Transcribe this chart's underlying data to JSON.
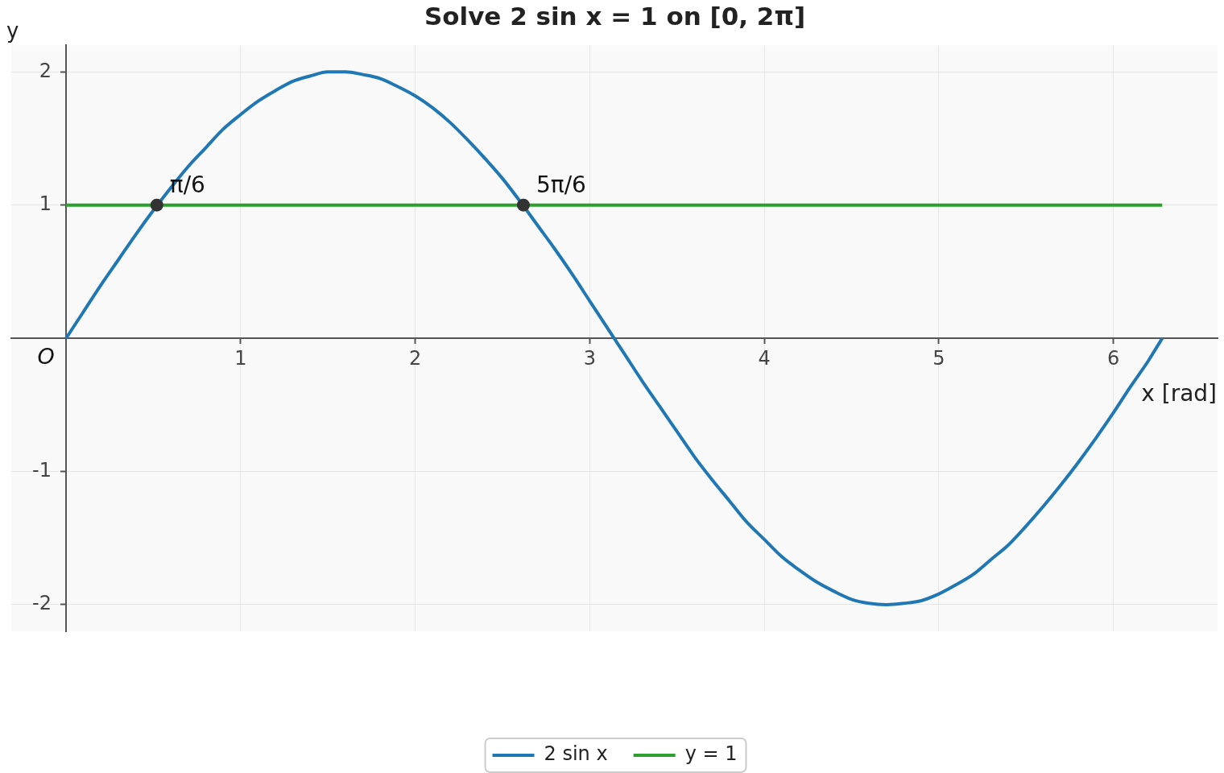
{
  "chart_data": {
    "type": "line",
    "title": "Solve 2 sin x = 1 on [0, 2π]",
    "xlabel": "x [rad]",
    "ylabel": "y",
    "xlim": [
      -0.314,
      6.597
    ],
    "ylim": [
      -2.2,
      2.2
    ],
    "xticks": [
      1,
      2,
      3,
      4,
      5,
      6
    ],
    "yticks": [
      -2,
      -1,
      1,
      2
    ],
    "grid": true,
    "legend": "bottom",
    "annotations": [
      {
        "text": "π/6",
        "x": 0.52,
        "y": 1
      },
      {
        "text": "5π/6",
        "x": 2.62,
        "y": 1
      },
      {
        "text": "O",
        "x": 0,
        "y": 0
      }
    ],
    "series": [
      {
        "name": "2 sin x",
        "color": "#1f77b4",
        "x": [
          0,
          0.1,
          0.2,
          0.3,
          0.4,
          0.5,
          0.6,
          0.7,
          0.8,
          0.9,
          1.0,
          1.1,
          1.2,
          1.3,
          1.4,
          1.5,
          1.6,
          1.7,
          1.8,
          1.9,
          2.0,
          2.1,
          2.2,
          2.3,
          2.4,
          2.5,
          2.6,
          2.7,
          2.8,
          2.9,
          3.0,
          3.1,
          3.2,
          3.3,
          3.4,
          3.5,
          3.6,
          3.7,
          3.8,
          3.9,
          4.0,
          4.1,
          4.2,
          4.3,
          4.4,
          4.5,
          4.6,
          4.7,
          4.8,
          4.9,
          5.0,
          5.1,
          5.2,
          5.3,
          5.4,
          5.5,
          5.6,
          5.7,
          5.8,
          5.9,
          6.0,
          6.1,
          6.2,
          6.28
        ],
        "values": [
          0,
          0.2,
          0.4,
          0.59,
          0.78,
          0.96,
          1.13,
          1.29,
          1.43,
          1.57,
          1.68,
          1.78,
          1.86,
          1.93,
          1.97,
          2.0,
          2.0,
          1.98,
          1.95,
          1.89,
          1.82,
          1.73,
          1.62,
          1.49,
          1.35,
          1.2,
          1.03,
          0.85,
          0.67,
          0.48,
          0.28,
          0.08,
          -0.12,
          -0.32,
          -0.51,
          -0.7,
          -0.89,
          -1.06,
          -1.22,
          -1.38,
          -1.51,
          -1.64,
          -1.74,
          -1.83,
          -1.9,
          -1.96,
          -1.99,
          -2.0,
          -1.99,
          -1.97,
          -1.92,
          -1.85,
          -1.77,
          -1.66,
          -1.55,
          -1.41,
          -1.26,
          -1.1,
          -0.93,
          -0.75,
          -0.56,
          -0.36,
          -0.17,
          0
        ]
      },
      {
        "name": "y = 1",
        "color": "#2ca02c",
        "x": [
          0,
          6.28
        ],
        "values": [
          1,
          1
        ]
      },
      {
        "type": "scatter",
        "color": "#333333",
        "marker": "circle",
        "x": [
          0.52,
          2.62
        ],
        "values": [
          1,
          1
        ]
      }
    ]
  }
}
